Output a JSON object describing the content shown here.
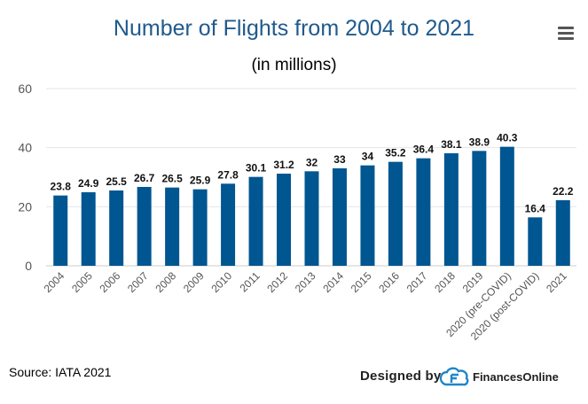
{
  "header": {
    "title": "Number of Flights from 2004 to 2021",
    "subtitle": "(in millions)",
    "menu_icon": "hamburger-menu-icon"
  },
  "footer": {
    "source": "Source: IATA 2021",
    "designed_by": "Designed by",
    "brand": "FinancesOnline",
    "logo_icon": "financesonline-logo-icon"
  },
  "colors": {
    "bar": "#005691",
    "title": "#1f5a8c",
    "grid": "#e6e6e6"
  },
  "chart_data": {
    "type": "bar",
    "title": "Number of Flights from 2004 to 2021",
    "subtitle": "(in millions)",
    "categories": [
      "2004",
      "2005",
      "2006",
      "2007",
      "2008",
      "2009",
      "2010",
      "2011",
      "2012",
      "2013",
      "2014",
      "2015",
      "2016",
      "2017",
      "2018",
      "2019",
      "2020 (pre-COVID)",
      "2020 (post-COVID)",
      "2021"
    ],
    "values": [
      23.8,
      24.9,
      25.5,
      26.7,
      26.5,
      25.9,
      27.8,
      30.1,
      31.2,
      32,
      33,
      34,
      35.2,
      36.4,
      38.1,
      38.9,
      40.3,
      16.4,
      22.2
    ],
    "data_labels": [
      "23.8",
      "24.9",
      "25.5",
      "26.7",
      "26.5",
      "25.9",
      "27.8",
      "30.1",
      "31.2",
      "32",
      "33",
      "34",
      "35.2",
      "36.4",
      "38.1",
      "38.9",
      "40.3",
      "16.4",
      "22.2"
    ],
    "ylim": [
      0,
      60
    ],
    "yticks": [
      "0",
      "20",
      "40",
      "60"
    ],
    "grid": true,
    "legend": "none"
  }
}
